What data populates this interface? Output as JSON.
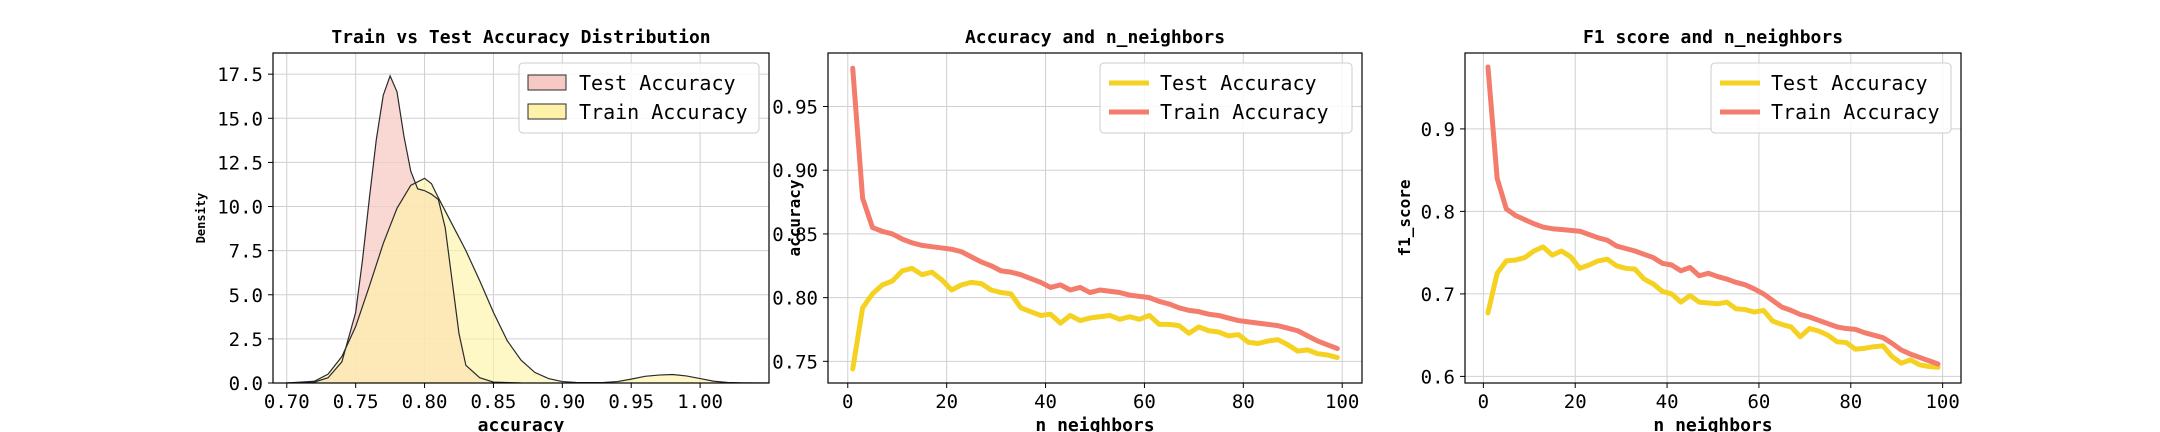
{
  "chart_data": [
    {
      "type": "area",
      "title": "Train vs Test Accuracy Distribution",
      "xlabel": "accuracy",
      "ylabel": "Density",
      "xlim": [
        0.69,
        1.05
      ],
      "ylim": [
        0,
        18.7
      ],
      "xticks": [
        0.7,
        0.75,
        0.8,
        0.85,
        0.9,
        0.95,
        1.0
      ],
      "xtick_labels": [
        "0.70",
        "0.75",
        "0.80",
        "0.85",
        "0.90",
        "0.95",
        "1.00"
      ],
      "yticks": [
        0,
        2.5,
        5.0,
        7.5,
        10.0,
        12.5,
        15.0,
        17.5
      ],
      "ytick_labels": [
        "0.0",
        "2.5",
        "5.0",
        "7.5",
        "10.0",
        "12.5",
        "15.0",
        "17.5"
      ],
      "grid": true,
      "legend_position": "top-right",
      "series": [
        {
          "name": "Test Accuracy",
          "color": "#f7c9c4",
          "x": [
            0.7,
            0.72,
            0.73,
            0.74,
            0.75,
            0.755,
            0.76,
            0.765,
            0.77,
            0.775,
            0.78,
            0.785,
            0.79,
            0.795,
            0.8,
            0.805,
            0.81,
            0.815,
            0.82,
            0.825,
            0.83,
            0.84,
            0.85,
            0.87
          ],
          "y": [
            0,
            0.05,
            0.3,
            1.2,
            4.0,
            7.0,
            10.5,
            13.8,
            16.3,
            17.4,
            16.5,
            14.0,
            12.0,
            11.0,
            10.9,
            10.7,
            10.4,
            8.8,
            5.8,
            2.8,
            1.0,
            0.3,
            0.05,
            0
          ]
        },
        {
          "name": "Train Accuracy",
          "color": "#fdf2a8",
          "x": [
            0.7,
            0.72,
            0.73,
            0.74,
            0.75,
            0.76,
            0.77,
            0.78,
            0.79,
            0.8,
            0.805,
            0.81,
            0.82,
            0.83,
            0.84,
            0.85,
            0.86,
            0.87,
            0.88,
            0.89,
            0.9,
            0.91,
            0.92,
            0.93,
            0.94,
            0.95,
            0.96,
            0.97,
            0.98,
            0.99,
            1.0,
            1.01,
            1.02,
            1.03,
            1.05
          ],
          "y": [
            0,
            0.1,
            0.5,
            1.5,
            3.2,
            5.5,
            7.9,
            9.9,
            11.2,
            11.6,
            11.3,
            10.5,
            9.0,
            7.5,
            5.8,
            4.0,
            2.4,
            1.3,
            0.6,
            0.25,
            0.08,
            0.03,
            0.02,
            0.03,
            0.08,
            0.22,
            0.38,
            0.45,
            0.48,
            0.4,
            0.25,
            0.1,
            0.03,
            0.01,
            0
          ]
        }
      ]
    },
    {
      "type": "line",
      "title": "Accuracy and n_neighbors",
      "xlabel": "n_neighbors",
      "ylabel": "accuracy",
      "xlim": [
        -4,
        104
      ],
      "ylim": [
        0.733,
        0.992
      ],
      "xticks": [
        0,
        20,
        40,
        60,
        80,
        100
      ],
      "xtick_labels": [
        "0",
        "20",
        "40",
        "60",
        "80",
        "100"
      ],
      "yticks": [
        0.75,
        0.8,
        0.85,
        0.9,
        0.95
      ],
      "ytick_labels": [
        "0.75",
        "0.80",
        "0.85",
        "0.90",
        "0.95"
      ],
      "grid": true,
      "legend_position": "top-right",
      "x": [
        1,
        3,
        5,
        7,
        9,
        11,
        13,
        15,
        17,
        19,
        21,
        23,
        25,
        27,
        29,
        31,
        33,
        35,
        37,
        39,
        41,
        43,
        45,
        47,
        49,
        51,
        53,
        55,
        57,
        59,
        61,
        63,
        65,
        67,
        69,
        71,
        73,
        75,
        77,
        79,
        81,
        83,
        85,
        87,
        89,
        91,
        93,
        95,
        97,
        99
      ],
      "series": [
        {
          "name": "Test Accuracy",
          "color": "#f5d222",
          "values": [
            0.744,
            0.792,
            0.803,
            0.81,
            0.813,
            0.821,
            0.823,
            0.818,
            0.82,
            0.814,
            0.806,
            0.81,
            0.812,
            0.811,
            0.806,
            0.804,
            0.803,
            0.792,
            0.789,
            0.786,
            0.787,
            0.78,
            0.786,
            0.782,
            0.784,
            0.785,
            0.786,
            0.783,
            0.785,
            0.783,
            0.786,
            0.779,
            0.779,
            0.778,
            0.772,
            0.777,
            0.774,
            0.773,
            0.77,
            0.771,
            0.765,
            0.764,
            0.766,
            0.767,
            0.763,
            0.758,
            0.759,
            0.756,
            0.755,
            0.753
          ]
        },
        {
          "name": "Train Accuracy",
          "color": "#f47c6c",
          "values": [
            0.98,
            0.878,
            0.855,
            0.852,
            0.85,
            0.846,
            0.843,
            0.841,
            0.84,
            0.839,
            0.838,
            0.836,
            0.832,
            0.828,
            0.825,
            0.821,
            0.82,
            0.818,
            0.815,
            0.812,
            0.808,
            0.81,
            0.806,
            0.808,
            0.804,
            0.806,
            0.805,
            0.804,
            0.802,
            0.801,
            0.8,
            0.797,
            0.795,
            0.792,
            0.79,
            0.789,
            0.787,
            0.786,
            0.784,
            0.782,
            0.781,
            0.78,
            0.779,
            0.778,
            0.776,
            0.774,
            0.77,
            0.766,
            0.763,
            0.76
          ]
        }
      ]
    },
    {
      "type": "line",
      "title": "F1 score and n_neighbors",
      "xlabel": "n_neighbors",
      "ylabel": "f1_score",
      "xlim": [
        -4,
        104
      ],
      "ylim": [
        0.592,
        0.992
      ],
      "xticks": [
        0,
        20,
        40,
        60,
        80,
        100
      ],
      "xtick_labels": [
        "0",
        "20",
        "40",
        "60",
        "80",
        "100"
      ],
      "yticks": [
        0.6,
        0.7,
        0.8,
        0.9
      ],
      "ytick_labels": [
        "0.6",
        "0.7",
        "0.8",
        "0.9"
      ],
      "grid": true,
      "legend_position": "top-right",
      "x": [
        1,
        3,
        5,
        7,
        9,
        11,
        13,
        15,
        17,
        19,
        21,
        23,
        25,
        27,
        29,
        31,
        33,
        35,
        37,
        39,
        41,
        43,
        45,
        47,
        49,
        51,
        53,
        55,
        57,
        59,
        61,
        63,
        65,
        67,
        69,
        71,
        73,
        75,
        77,
        79,
        81,
        83,
        85,
        87,
        89,
        91,
        93,
        95,
        97,
        99
      ],
      "series": [
        {
          "name": "Test Accuracy",
          "color": "#f5d222",
          "values": [
            0.677,
            0.725,
            0.74,
            0.741,
            0.744,
            0.752,
            0.757,
            0.747,
            0.752,
            0.745,
            0.731,
            0.735,
            0.74,
            0.742,
            0.734,
            0.731,
            0.73,
            0.718,
            0.712,
            0.703,
            0.7,
            0.69,
            0.698,
            0.69,
            0.689,
            0.688,
            0.69,
            0.682,
            0.681,
            0.678,
            0.68,
            0.667,
            0.663,
            0.66,
            0.648,
            0.658,
            0.655,
            0.65,
            0.642,
            0.641,
            0.633,
            0.634,
            0.636,
            0.637,
            0.624,
            0.616,
            0.62,
            0.614,
            0.612,
            0.611
          ]
        },
        {
          "name": "Train Accuracy",
          "color": "#f47c6c",
          "values": [
            0.975,
            0.84,
            0.803,
            0.795,
            0.79,
            0.785,
            0.781,
            0.779,
            0.778,
            0.777,
            0.776,
            0.772,
            0.768,
            0.765,
            0.758,
            0.755,
            0.752,
            0.748,
            0.744,
            0.737,
            0.735,
            0.728,
            0.732,
            0.722,
            0.725,
            0.721,
            0.718,
            0.714,
            0.711,
            0.706,
            0.7,
            0.692,
            0.684,
            0.68,
            0.675,
            0.672,
            0.668,
            0.664,
            0.66,
            0.658,
            0.657,
            0.653,
            0.65,
            0.647,
            0.64,
            0.632,
            0.627,
            0.623,
            0.619,
            0.615
          ]
        }
      ]
    }
  ]
}
